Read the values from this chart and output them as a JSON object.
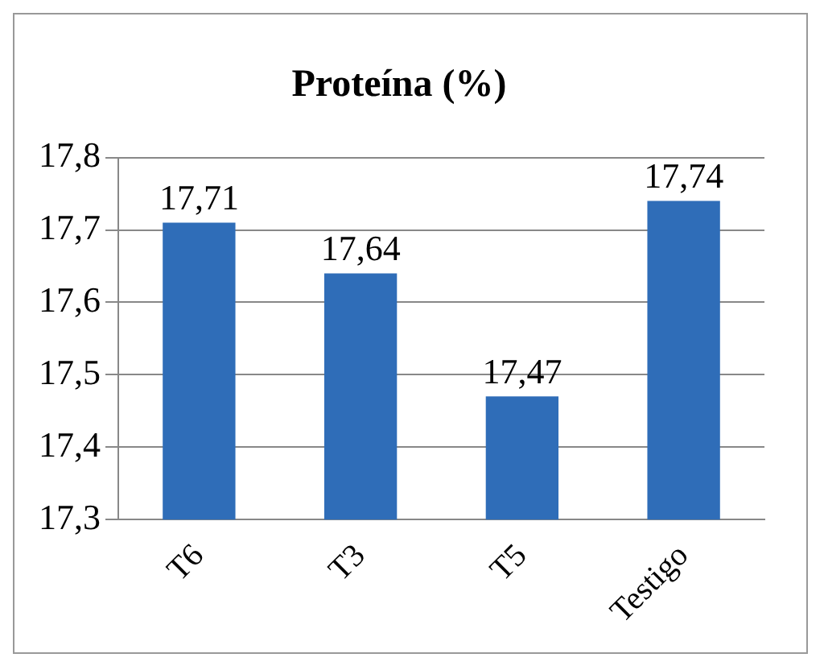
{
  "chart_data": {
    "type": "bar",
    "title": "Proteína (%)",
    "categories": [
      "T6",
      "T3",
      "T5",
      "Testigo"
    ],
    "values": [
      17.71,
      17.64,
      17.47,
      17.74
    ],
    "value_labels": [
      "17,71",
      "17,64",
      "17,47",
      "17,74"
    ],
    "color": "#2f6db8",
    "ylim": [
      17.3,
      17.8
    ],
    "yticks": [
      {
        "value": 17.3,
        "label": "17,3"
      },
      {
        "value": 17.4,
        "label": "17,4"
      },
      {
        "value": 17.5,
        "label": "17,5"
      },
      {
        "value": 17.6,
        "label": "17,6"
      },
      {
        "value": 17.7,
        "label": "17,7"
      },
      {
        "value": 17.8,
        "label": "17,8"
      }
    ],
    "grid": "y",
    "legend": false
  }
}
